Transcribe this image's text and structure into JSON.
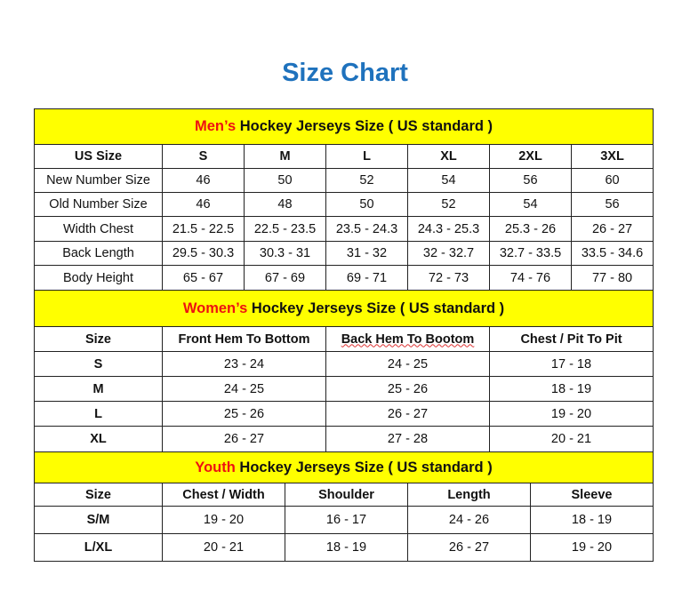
{
  "title": "Size Chart",
  "colors": {
    "title": "#1f72bd",
    "header_bg": "#ffff00",
    "accent_red": "#ee1111"
  },
  "men": {
    "header_prefix": "Men’s",
    "header_rest": " Hockey Jerseys Size ( US standard )",
    "columns": [
      "US Size",
      "S",
      "M",
      "L",
      "XL",
      "2XL",
      "3XL"
    ],
    "rows": [
      [
        "New Number Size",
        "46",
        "50",
        "52",
        "54",
        "56",
        "60"
      ],
      [
        "Old Number Size",
        "46",
        "48",
        "50",
        "52",
        "54",
        "56"
      ],
      [
        "Width Chest",
        "21.5 - 22.5",
        "22.5 - 23.5",
        "23.5 - 24.3",
        "24.3 - 25.3",
        "25.3 - 26",
        "26 - 27"
      ],
      [
        "Back Length",
        "29.5 - 30.3",
        "30.3 - 31",
        "31 - 32",
        "32 - 32.7",
        "32.7 - 33.5",
        "33.5 - 34.6"
      ],
      [
        "Body Height",
        "65 - 67",
        "67 - 69",
        "69 - 71",
        "72 - 73",
        "74 - 76",
        "77 - 80"
      ]
    ]
  },
  "women": {
    "header_prefix": "Women’s",
    "header_rest": " Hockey Jerseys Size ( US standard )",
    "columns": [
      "Size",
      "Front Hem To Bottom",
      "Back Hem To Bootom",
      "Chest / Pit To Pit"
    ],
    "rows": [
      [
        "S",
        "23 - 24",
        "24 - 25",
        "17 - 18"
      ],
      [
        "M",
        "24 - 25",
        "25 - 26",
        "18 - 19"
      ],
      [
        "L",
        "25 - 26",
        "26 - 27",
        "19 - 20"
      ],
      [
        "XL",
        "26 - 27",
        "27 - 28",
        "20 - 21"
      ]
    ]
  },
  "youth": {
    "header_prefix": "Youth",
    "header_rest": " Hockey Jerseys Size ( US standard )",
    "columns": [
      "Size",
      "Chest / Width",
      "Shoulder",
      "Length",
      "Sleeve"
    ],
    "rows": [
      [
        "S/M",
        "19 - 20",
        "16 - 17",
        "24 - 26",
        "18 - 19"
      ],
      [
        "L/XL",
        "20 - 21",
        "18 - 19",
        "26 - 27",
        "19 - 20"
      ]
    ]
  }
}
